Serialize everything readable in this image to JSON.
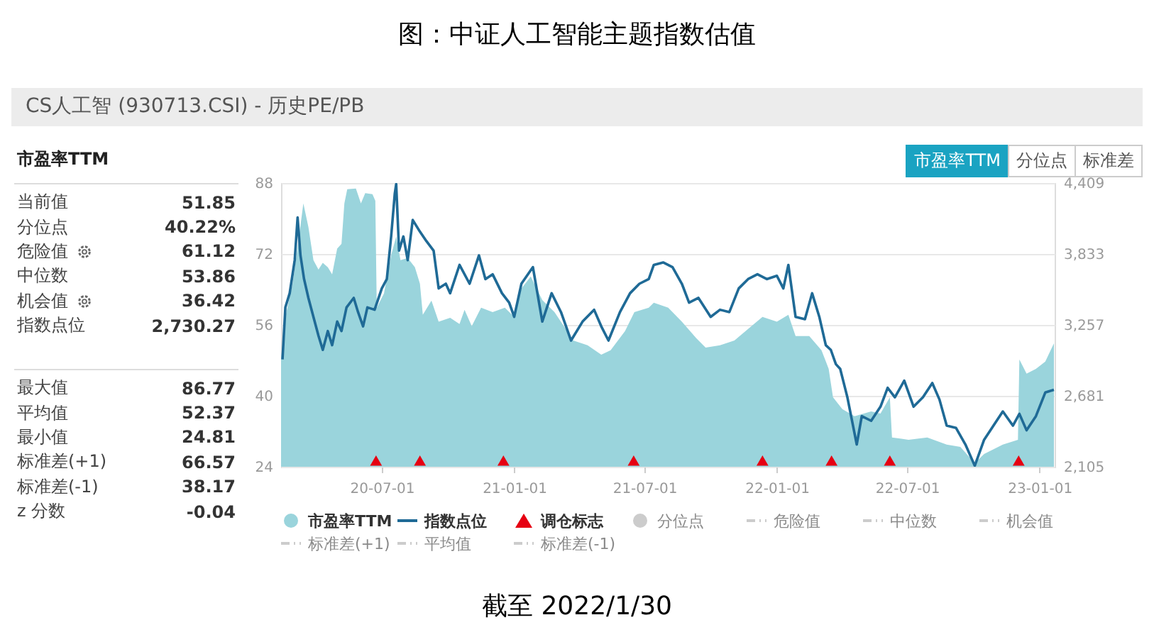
{
  "chart_data": [
    {
      "type": "other",
      "title": "市盈率TTM",
      "categories": [
        "当前值",
        "分位点",
        "危险值",
        "中位数",
        "机会值",
        "指数点位"
      ],
      "value_labels": [
        "51.85",
        "40.22%",
        "61.12",
        "53.86",
        "36.42",
        "2,730.27"
      ]
    },
    {
      "type": "other",
      "categories": [
        "最大值",
        "平均值",
        "最小值",
        "标准差(+1)",
        "标准差(-1)",
        "z 分数"
      ],
      "value_labels": [
        "86.77",
        "52.37",
        "24.81",
        "66.57",
        "38.17",
        "-0.04"
      ]
    },
    {
      "type": "other",
      "categories": [
        "市盈率TTM",
        "分位点",
        "标准差"
      ]
    },
    {
      "type": "area",
      "title": "图：中证人工智能主题指数估值",
      "subtitle": "CS人工智 (930713.CSI) - 历史PE/PB",
      "annotations": [
        "截至 2022/1/30"
      ],
      "xlim": [
        "2020-02-12",
        "2023-01-22"
      ],
      "xticks": [
        {
          "value": "2020-07-01",
          "label": "20-07-01"
        },
        {
          "value": "2021-01-01",
          "label": "21-01-01"
        },
        {
          "value": "2021-07-01",
          "label": "21-07-01"
        },
        {
          "value": "2022-01-01",
          "label": "22-01-01"
        },
        {
          "value": "2022-07-01",
          "label": "22-07-01"
        },
        {
          "value": "2023-01-01",
          "label": "23-01-01"
        }
      ],
      "ylim": [
        24,
        88
      ],
      "yticks": [
        24,
        40,
        56,
        72,
        88
      ],
      "y2lim": [
        2105,
        4409
      ],
      "y2ticks": [
        {
          "value": 2105,
          "label": "2,105"
        },
        {
          "value": 2681,
          "label": "2,681"
        },
        {
          "value": 3257,
          "label": "3,257"
        },
        {
          "value": 3833,
          "label": "3,833"
        },
        {
          "value": 4409,
          "label": "4,409"
        }
      ],
      "grid": "y",
      "legend": "bottom",
      "series": [
        {
          "name": "市盈率TTM",
          "type": "area",
          "color": "#9ad4dc",
          "x": [
            "2020-02-12",
            "2020-02-18",
            "2020-02-28",
            "2020-03-08",
            "2020-03-14",
            "2020-03-21",
            "2020-03-28",
            "2020-04-04",
            "2020-04-10",
            "2020-04-17",
            "2020-04-23",
            "2020-04-30",
            "2020-05-06",
            "2020-05-10",
            "2020-05-14",
            "2020-05-26",
            "2020-06-02",
            "2020-06-08",
            "2020-06-18",
            "2020-06-22",
            "2020-06-24",
            "2020-07-04",
            "2020-07-14",
            "2020-07-21",
            "2020-07-27",
            "2020-08-06",
            "2020-08-16",
            "2020-08-23",
            "2020-08-27",
            "2020-09-08",
            "2020-09-18",
            "2020-10-04",
            "2020-10-17",
            "2020-10-24",
            "2020-11-03",
            "2020-11-16",
            "2020-12-02",
            "2020-12-19",
            "2021-01-01",
            "2021-01-11",
            "2021-01-24",
            "2021-02-09",
            "2021-02-26",
            "2021-03-11",
            "2021-03-24",
            "2021-04-13",
            "2021-05-02",
            "2021-05-15",
            "2021-06-04",
            "2021-06-17",
            "2021-07-07",
            "2021-07-14",
            "2021-08-03",
            "2021-08-22",
            "2021-09-11",
            "2021-09-24",
            "2021-10-14",
            "2021-11-03",
            "2021-11-22",
            "2021-12-12",
            "2022-01-01",
            "2022-01-17",
            "2022-01-27",
            "2022-02-15",
            "2022-03-04",
            "2022-03-14",
            "2022-03-20",
            "2022-04-02",
            "2022-04-19",
            "2022-05-12",
            "2022-05-25",
            "2022-06-07",
            "2022-06-10",
            "2022-07-03",
            "2022-07-29",
            "2022-08-25",
            "2022-09-13",
            "2022-10-03",
            "2022-10-16",
            "2022-11-11",
            "2022-12-02",
            "2022-12-04",
            "2022-12-14",
            "2022-12-27",
            "2023-01-09",
            "2023-01-21"
          ],
          "values": [
            48.2,
            57.8,
            65.3,
            75.9,
            83.4,
            78.1,
            70.6,
            68.5,
            70,
            69,
            67.4,
            73.2,
            74.3,
            83.4,
            86.6,
            86.77,
            83.4,
            85.7,
            85.5,
            84,
            59.9,
            63.1,
            71.7,
            75.9,
            70.6,
            71.1,
            69,
            65.3,
            58.3,
            61.5,
            56.7,
            57.6,
            56.2,
            59.4,
            55.7,
            59.9,
            58.9,
            59.9,
            57.8,
            64.2,
            66.9,
            61.6,
            58.9,
            55.7,
            52.5,
            51.4,
            49.3,
            50.3,
            54.6,
            58.9,
            59.9,
            61,
            59.9,
            56.7,
            53,
            50.9,
            51.4,
            52.5,
            55.1,
            57.8,
            56.7,
            58.3,
            53.5,
            53.5,
            50.3,
            46.1,
            39.7,
            37,
            35.4,
            36.5,
            36,
            39.7,
            30.6,
            30.1,
            30.6,
            29,
            28.5,
            24.81,
            26.9,
            29,
            30.1,
            48.2,
            45,
            46.1,
            47.7,
            51.85
          ]
        },
        {
          "name": "指数点位",
          "type": "line",
          "axis": "y2",
          "color": "#1f6a96",
          "x": [
            "2020-02-14",
            "2020-02-18",
            "2020-02-24",
            "2020-03-02",
            "2020-03-06",
            "2020-03-10",
            "2020-03-15",
            "2020-03-21",
            "2020-03-28",
            "2020-04-04",
            "2020-04-10",
            "2020-04-17",
            "2020-04-23",
            "2020-04-30",
            "2020-05-06",
            "2020-05-13",
            "2020-05-23",
            "2020-05-29",
            "2020-06-05",
            "2020-06-11",
            "2020-06-21",
            "2020-07-01",
            "2020-07-08",
            "2020-07-14",
            "2020-07-19",
            "2020-07-21",
            "2020-07-25",
            "2020-07-31",
            "2020-08-06",
            "2020-08-13",
            "2020-08-23",
            "2020-09-01",
            "2020-09-11",
            "2020-09-18",
            "2020-09-28",
            "2020-10-04",
            "2020-10-17",
            "2020-10-31",
            "2020-11-13",
            "2020-11-22",
            "2020-12-02",
            "2020-12-15",
            "2020-12-25",
            "2021-01-01",
            "2021-01-11",
            "2021-01-27",
            "2021-02-09",
            "2021-02-22",
            "2021-03-07",
            "2021-03-21",
            "2021-04-06",
            "2021-04-22",
            "2021-05-02",
            "2021-05-12",
            "2021-05-28",
            "2021-06-11",
            "2021-06-24",
            "2021-07-07",
            "2021-07-14",
            "2021-07-27",
            "2021-08-09",
            "2021-08-22",
            "2021-09-01",
            "2021-09-14",
            "2021-10-01",
            "2021-10-14",
            "2021-10-27",
            "2021-11-09",
            "2021-11-22",
            "2021-12-05",
            "2021-12-18",
            "2022-01-01",
            "2022-01-10",
            "2022-01-17",
            "2022-01-27",
            "2022-02-09",
            "2022-02-19",
            "2022-03-01",
            "2022-03-10",
            "2022-03-17",
            "2022-03-24",
            "2022-03-30",
            "2022-04-09",
            "2022-04-22",
            "2022-04-29",
            "2022-05-12",
            "2022-05-25",
            "2022-06-04",
            "2022-06-14",
            "2022-06-27",
            "2022-07-10",
            "2022-07-23",
            "2022-08-05",
            "2022-08-15",
            "2022-08-25",
            "2022-09-07",
            "2022-09-20",
            "2022-10-03",
            "2022-10-16",
            "2022-10-29",
            "2022-11-11",
            "2022-11-25",
            "2022-12-04",
            "2022-12-14",
            "2022-12-27",
            "2023-01-09",
            "2023-01-21"
          ],
          "values": [
            2977,
            3399,
            3514,
            3783,
            4129,
            3821,
            3629,
            3476,
            3322,
            3169,
            3054,
            3207,
            3092,
            3284,
            3207,
            3399,
            3476,
            3361,
            3245,
            3399,
            3380,
            3553,
            3629,
            3975,
            4321,
            4400,
            3860,
            3975,
            3783,
            4109,
            4014,
            3937,
            3860,
            3553,
            3591,
            3514,
            3744,
            3591,
            3821,
            3629,
            3668,
            3514,
            3438,
            3322,
            3591,
            3726,
            3284,
            3514,
            3361,
            3130,
            3284,
            3380,
            3245,
            3130,
            3361,
            3514,
            3591,
            3629,
            3744,
            3764,
            3726,
            3591,
            3438,
            3476,
            3322,
            3380,
            3361,
            3553,
            3629,
            3668,
            3629,
            3656,
            3553,
            3744,
            3322,
            3303,
            3514,
            3322,
            3092,
            3054,
            2938,
            2900,
            2669,
            2286,
            2516,
            2478,
            2593,
            2746,
            2669,
            2804,
            2593,
            2669,
            2785,
            2650,
            2439,
            2420,
            2286,
            2113,
            2324,
            2439,
            2554,
            2439,
            2535,
            2401,
            2516,
            2708,
            2730
          ]
        },
        {
          "name": "调仓标志",
          "type": "scatter",
          "marker": "triangle",
          "color": "#e60012",
          "x": [
            "2020-06-23",
            "2020-08-23",
            "2020-12-17",
            "2021-06-16",
            "2021-12-12",
            "2022-03-18",
            "2022-06-07",
            "2022-12-03"
          ],
          "values": [
            25.4,
            25.4,
            25.4,
            25.4,
            25.4,
            25.4,
            25.4,
            25.4
          ]
        },
        {
          "name": "分位点",
          "type": "scatter",
          "marker": "circle",
          "color": "#cccccc"
        },
        {
          "name": "危险值",
          "type": "line",
          "line_style": "dashed",
          "color": "#cccccc"
        },
        {
          "name": "中位数",
          "type": "line",
          "line_style": "dashed",
          "color": "#cccccc"
        },
        {
          "name": "机会值",
          "type": "line",
          "line_style": "dashed",
          "color": "#cccccc"
        },
        {
          "name": "标准差(+1)",
          "type": "line",
          "line_style": "dashed",
          "color": "#cccccc"
        },
        {
          "name": "平均值",
          "type": "line",
          "line_style": "dashed",
          "color": "#cccccc"
        },
        {
          "name": "标准差(-1)",
          "type": "line",
          "line_style": "dashed",
          "color": "#cccccc"
        }
      ]
    }
  ]
}
